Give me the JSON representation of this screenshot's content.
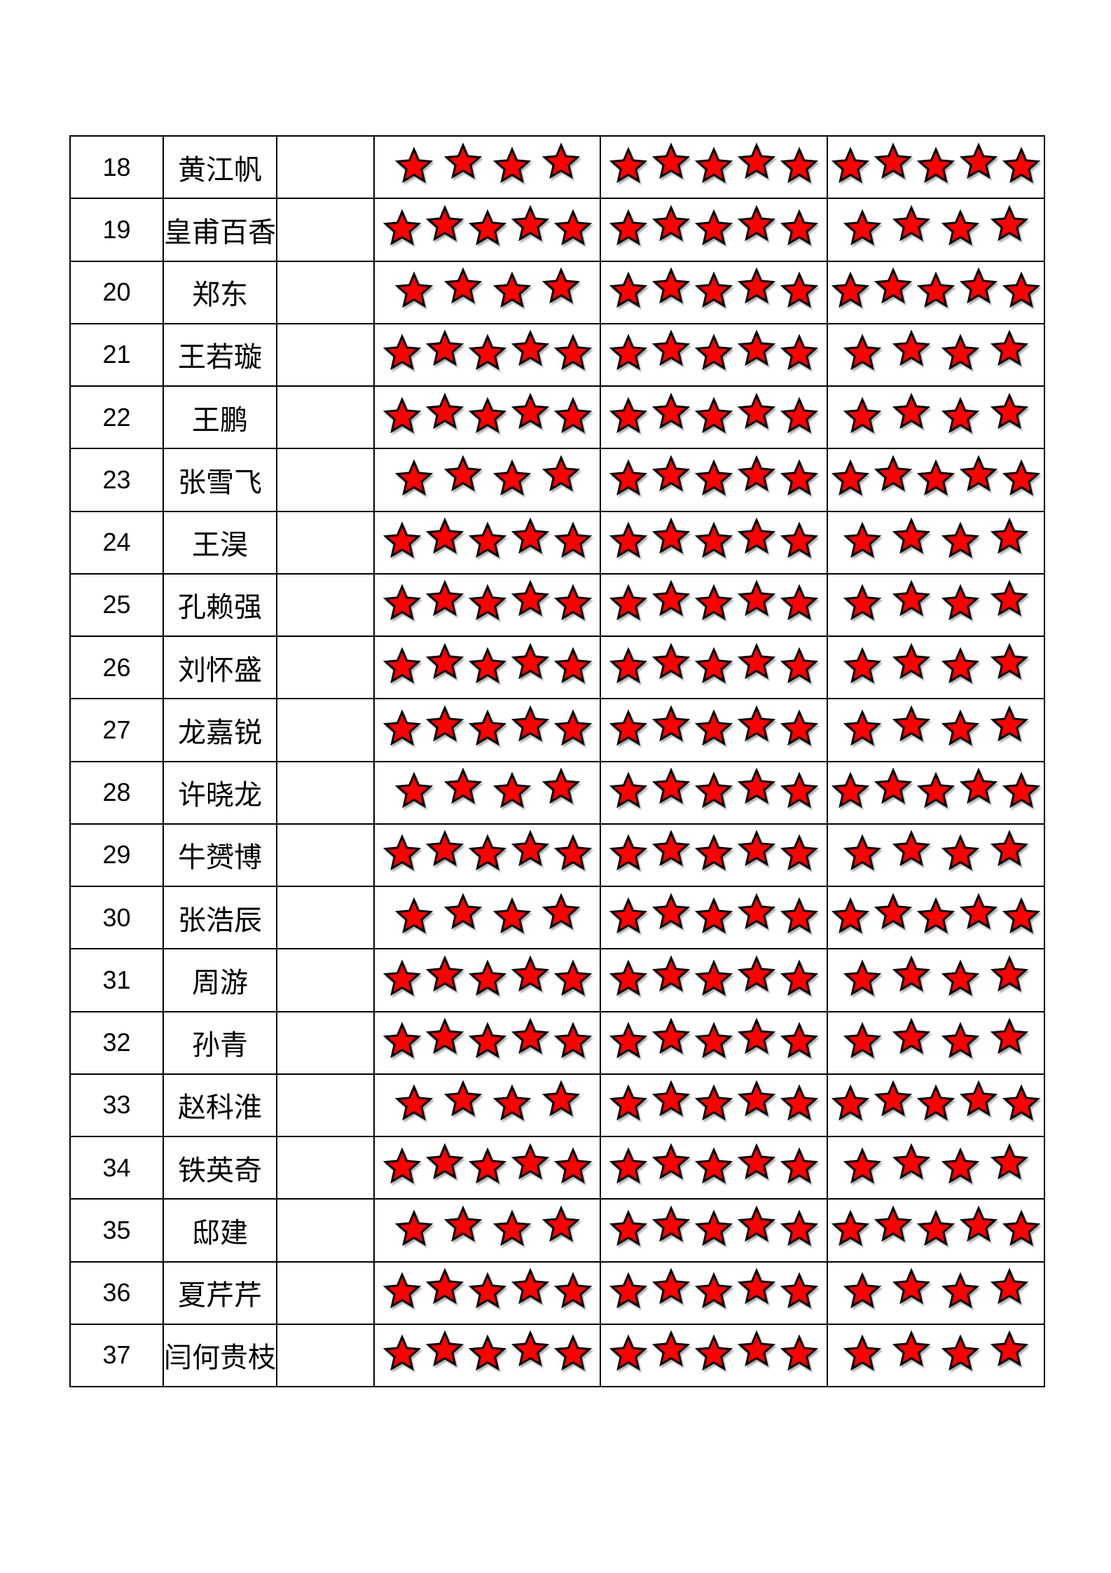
{
  "document": {
    "type": "rating-table-page",
    "colors": {
      "page_background": "#FFFFFF",
      "table_border": "#000000",
      "text_color": "#000000",
      "star_fill": "#FF0000",
      "star_outline": "#000000"
    },
    "icons": {
      "star": "five-pointed-star-icon"
    },
    "table": {
      "columns": [
        "row-number",
        "name",
        "blank",
        "rating-1",
        "rating-2",
        "rating-3"
      ],
      "rows": [
        {
          "index": "18",
          "name": "黄江帆",
          "ratings": [
            4,
            5,
            5
          ]
        },
        {
          "index": "19",
          "name": "皇甫百香",
          "ratings": [
            5,
            5,
            4
          ]
        },
        {
          "index": "20",
          "name": "郑东",
          "ratings": [
            4,
            5,
            5
          ]
        },
        {
          "index": "21",
          "name": "王若璇",
          "ratings": [
            5,
            5,
            4
          ]
        },
        {
          "index": "22",
          "name": "王鹏",
          "ratings": [
            5,
            5,
            4
          ]
        },
        {
          "index": "23",
          "name": "张雪飞",
          "ratings": [
            4,
            5,
            5
          ]
        },
        {
          "index": "24",
          "name": "王淏",
          "ratings": [
            5,
            5,
            4
          ]
        },
        {
          "index": "25",
          "name": "孔赖强",
          "ratings": [
            5,
            5,
            4
          ]
        },
        {
          "index": "26",
          "name": "刘怀盛",
          "ratings": [
            5,
            5,
            4
          ]
        },
        {
          "index": "27",
          "name": "龙嘉锐",
          "ratings": [
            5,
            5,
            4
          ]
        },
        {
          "index": "28",
          "name": "许晓龙",
          "ratings": [
            4,
            5,
            5
          ]
        },
        {
          "index": "29",
          "name": "牛赟博",
          "ratings": [
            5,
            5,
            4
          ]
        },
        {
          "index": "30",
          "name": "张浩辰",
          "ratings": [
            4,
            5,
            5
          ]
        },
        {
          "index": "31",
          "name": "周游",
          "ratings": [
            5,
            5,
            4
          ]
        },
        {
          "index": "32",
          "name": "孙青",
          "ratings": [
            5,
            5,
            4
          ]
        },
        {
          "index": "33",
          "name": "赵科淮",
          "ratings": [
            4,
            5,
            5
          ]
        },
        {
          "index": "34",
          "name": "铁英奇",
          "ratings": [
            5,
            5,
            4
          ]
        },
        {
          "index": "35",
          "name": "邸建",
          "ratings": [
            4,
            5,
            5
          ]
        },
        {
          "index": "36",
          "name": "夏芹芹",
          "ratings": [
            5,
            5,
            4
          ]
        },
        {
          "index": "37",
          "name": "闫何贵枝",
          "ratings": [
            5,
            5,
            4
          ]
        }
      ]
    }
  }
}
